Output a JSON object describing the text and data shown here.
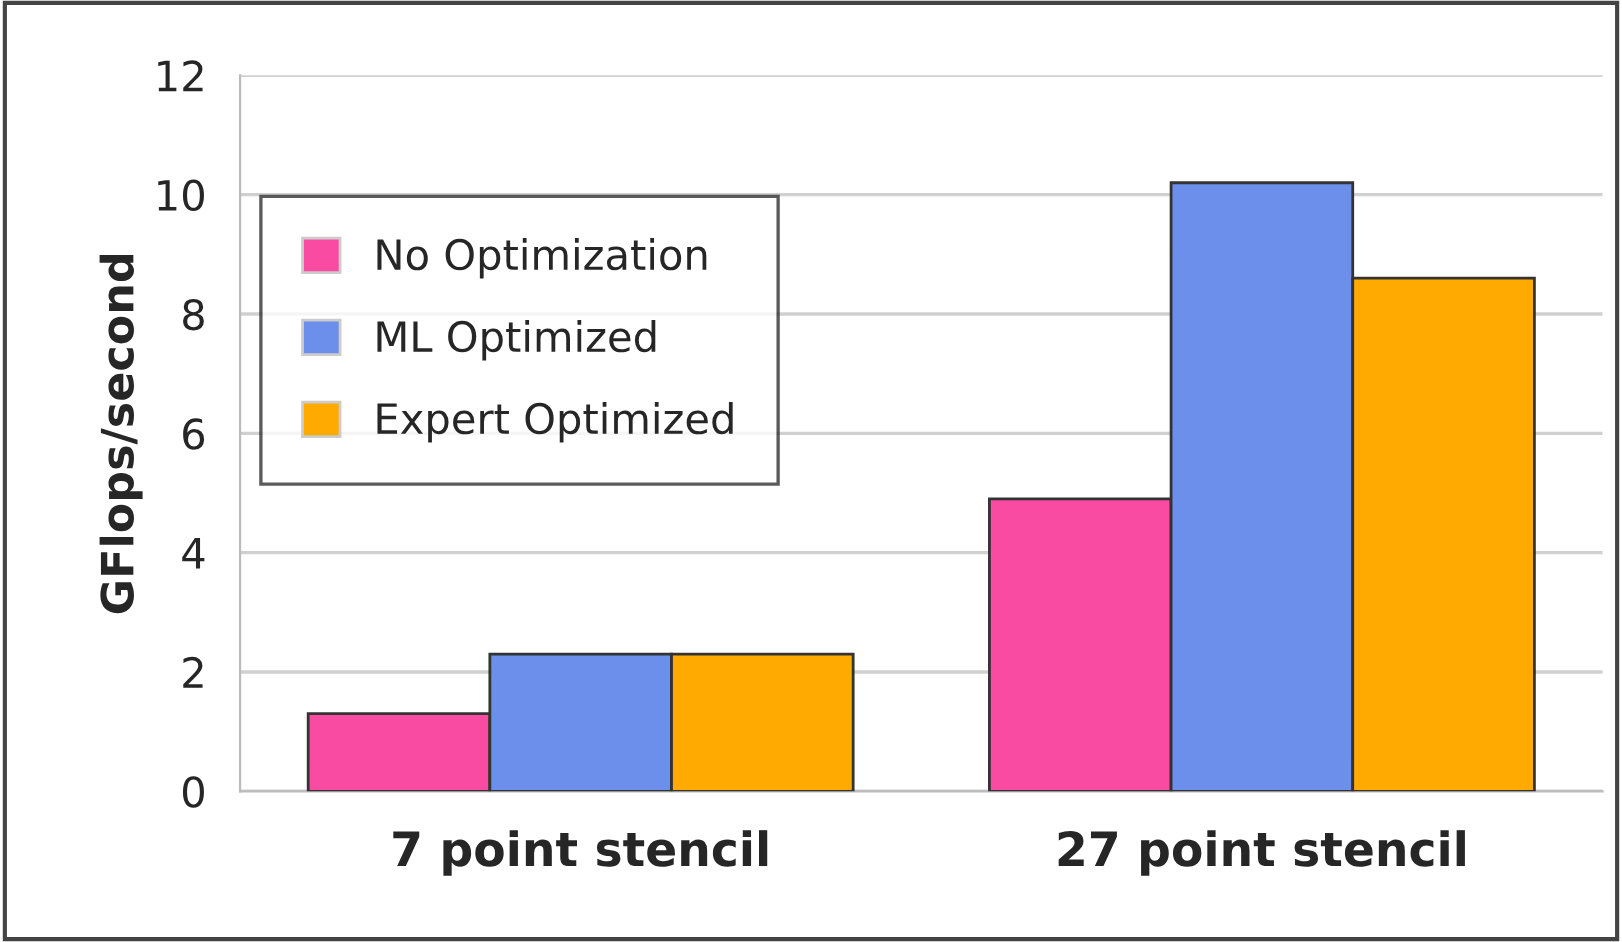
{
  "chart_data": {
    "type": "bar",
    "ylabel": "GFlops/second",
    "categories": [
      "7 point stencil",
      "27 point stencil"
    ],
    "series": [
      {
        "name": "No Optimization",
        "color": "#f94ba2",
        "values": [
          1.3,
          4.9
        ]
      },
      {
        "name": "ML Optimized",
        "color": "#6b8fea",
        "values": [
          2.3,
          10.2
        ]
      },
      {
        "name": "Expert Optimized",
        "color": "#ffaa00",
        "values": [
          2.3,
          8.6
        ]
      }
    ],
    "ylim": [
      0,
      12
    ],
    "yticks": [
      0,
      2,
      4,
      6,
      8,
      10,
      12
    ],
    "grid": "y",
    "legend": "top left"
  }
}
